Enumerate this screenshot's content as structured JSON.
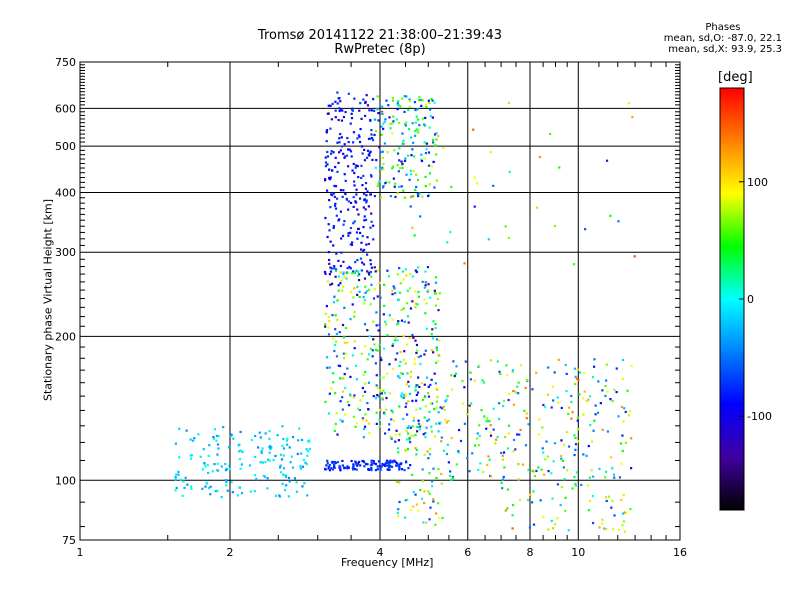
{
  "chart_data": {
    "type": "scatter",
    "title_line1": "Tromsø 20141122 21:38:00–21:39:43",
    "title_line2": "RwPretec (8p)",
    "xlabel": "Frequency [MHz]",
    "ylabel": "Stationary phase Virtual Height [km]",
    "x_scale": "log",
    "y_scale": "log",
    "xlim": [
      1,
      16
    ],
    "ylim": [
      75,
      750
    ],
    "x_ticks": [
      1,
      2,
      4,
      6,
      8,
      10,
      16
    ],
    "y_ticks": [
      75,
      100,
      200,
      300,
      400,
      500,
      600,
      750
    ],
    "x_gridlines": [
      2,
      4,
      6,
      8,
      10
    ],
    "y_gridlines": [
      100,
      200,
      300,
      400,
      500,
      600
    ],
    "grid": true,
    "phases": {
      "title": "Phases",
      "o_line": "mean, sd,O: -87.0, 22.1",
      "x_line": "mean, sd,X: 93.9, 25.3"
    },
    "colorbar": {
      "label": "[deg]",
      "range": [
        -180,
        180
      ],
      "ticks": [
        100,
        0,
        -100
      ],
      "colors": [
        "#ff0000",
        "#ff8000",
        "#ffff00",
        "#00ff00",
        "#00ffff",
        "#0080ff",
        "#0000ff",
        "#4000a0",
        "#000000"
      ]
    },
    "series": [
      {
        "clusters": [
          {
            "x": [
              1.55,
              2.9
            ],
            "y": [
              92,
              130
            ],
            "phase": [
              -60,
              -10
            ],
            "n": 180
          },
          {
            "x": [
              3.1,
              3.9
            ],
            "y": [
              270,
              650
            ],
            "phase": [
              -130,
              -80
            ],
            "n": 260
          },
          {
            "x": [
              3.9,
              5.2
            ],
            "y": [
              390,
              640
            ],
            "phase": [
              -130,
              100
            ],
            "n": 180
          },
          {
            "x": [
              3.1,
              4.6
            ],
            "y": [
              105,
              110
            ],
            "phase": [
              -110,
              -80
            ],
            "n": 120
          },
          {
            "x": [
              3.1,
              5.3
            ],
            "y": [
              120,
              280
            ],
            "phase": [
              -150,
              120
            ],
            "n": 420
          },
          {
            "x": [
              4.3,
              5.4
            ],
            "y": [
              80,
              160
            ],
            "phase": [
              -100,
              140
            ],
            "n": 90
          },
          {
            "x": [
              5.4,
              12.8
            ],
            "y": [
              100,
              180
            ],
            "phase": [
              -120,
              150
            ],
            "n": 260
          },
          {
            "x": [
              7.0,
              12.8
            ],
            "y": [
              78,
              100
            ],
            "phase": [
              -100,
              150
            ],
            "n": 60
          },
          {
            "x": [
              4.5,
              13.0
            ],
            "y": [
              260,
              640
            ],
            "phase": [
              -100,
              160
            ],
            "n": 40
          }
        ]
      }
    ]
  }
}
